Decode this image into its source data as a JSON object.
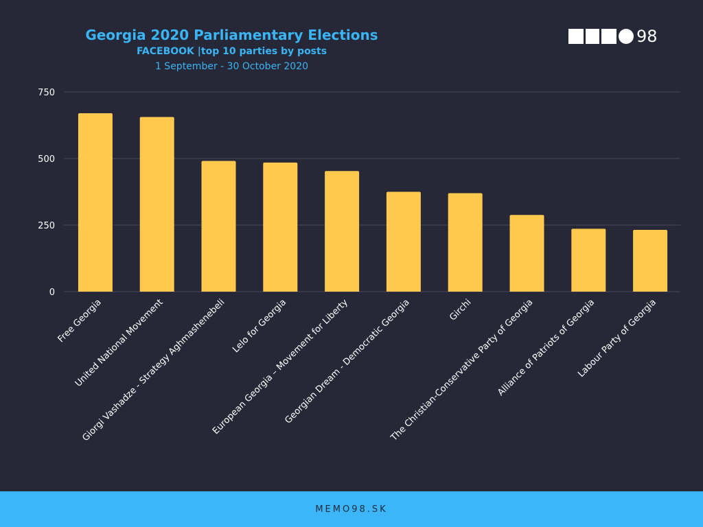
{
  "header": {
    "title": "Georgia 2020 Parliamentary Elections",
    "subtitle": "FACEBOOK |top 10 parties by posts",
    "daterange": "1 September - 30 October 2020"
  },
  "logo": {
    "number": "98",
    "icon": "memo98-logo"
  },
  "footer": {
    "text": "MEMO98.SK"
  },
  "colors": {
    "background": "#262838",
    "bar": "#ffc94d",
    "accent": "#3ab4f4",
    "footer": "#3cb6f8",
    "grid": "#4a4c5e"
  },
  "chart_data": {
    "type": "bar",
    "categories": [
      "Free Georgia",
      "United National Movement",
      "Giorgi Vashadze - Strategy Aghmashenebeli",
      "Lelo for Georgia",
      "European Georgia – Movement for Liberty",
      "Georgian Dream - Democratic Georgia",
      "Girchi",
      "The Christian-Conservative Party of Georgia",
      "Alliance of Patriots of Georgia",
      "Labour Party of Georgia"
    ],
    "values": [
      670,
      656,
      491,
      485,
      453,
      375,
      370,
      288,
      236,
      232
    ],
    "yticks": [
      0,
      250,
      500,
      750
    ],
    "ylim": [
      0,
      750
    ],
    "grid": true,
    "legend": "none"
  }
}
